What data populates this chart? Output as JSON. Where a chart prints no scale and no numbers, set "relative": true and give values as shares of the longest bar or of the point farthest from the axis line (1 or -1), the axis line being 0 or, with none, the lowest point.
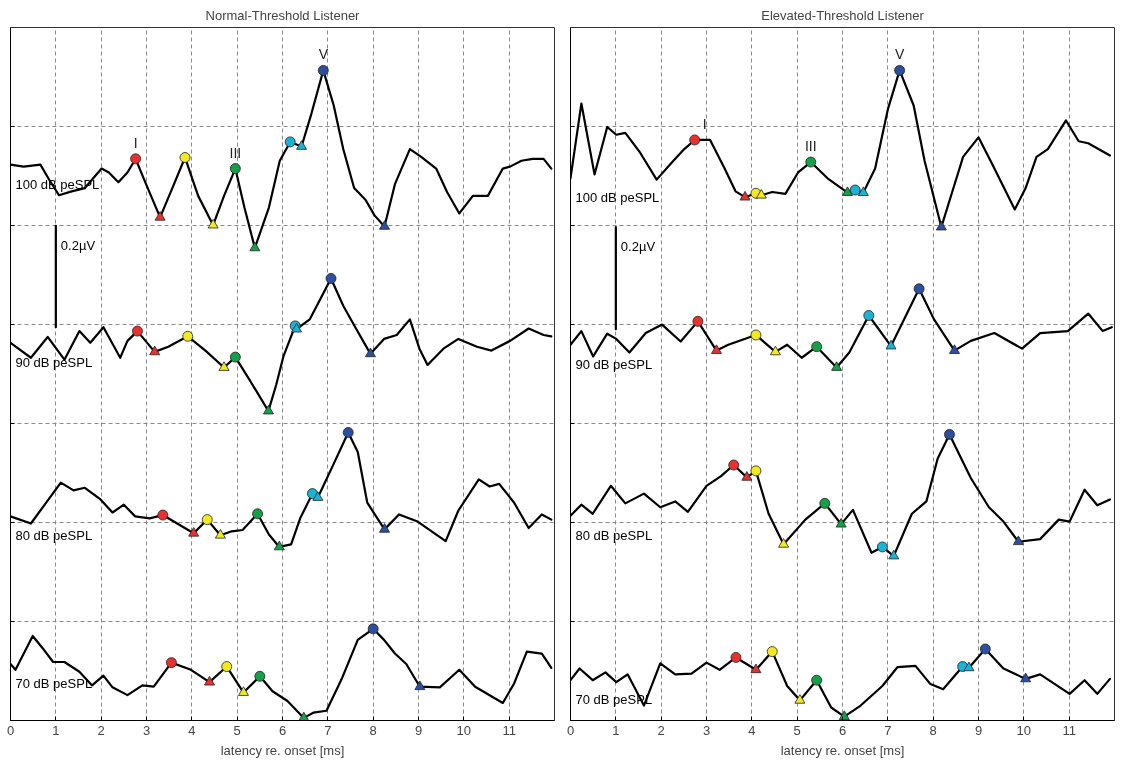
{
  "chart_data": [
    {
      "type": "line",
      "title": "Normal-Threshold Listener",
      "xlabel": "latency re. onset [ms]",
      "relative": true,
      "xlim": [
        0,
        12
      ],
      "xticks": [
        0,
        1,
        2,
        3,
        4,
        5,
        6,
        7,
        8,
        9,
        10,
        11
      ],
      "grid": true,
      "tick_labels": "x",
      "annotations": [
        {
          "text": "I",
          "x": 2.76,
          "y": 0.864
        },
        {
          "text": "III",
          "x": 4.96,
          "y": 0.849
        },
        {
          "text": "V",
          "x": 6.9,
          "y": 1.0
        }
      ],
      "series": [
        {
          "name": "100 dB peSPL",
          "color": "#000000",
          "x": [
            0,
            0.29,
            0.66,
            0.86,
            1.07,
            1.35,
            1.64,
            2.01,
            2.17,
            2.38,
            2.58,
            2.76,
            2.99,
            3.3,
            3.57,
            3.85,
            4.14,
            4.47,
            4.71,
            4.96,
            5.16,
            5.39,
            5.7,
            5.94,
            6.17,
            6.42,
            6.64,
            6.9,
            7.13,
            7.34,
            7.58,
            7.83,
            8.03,
            8.25,
            8.48,
            8.81,
            9.06,
            9.39,
            9.63,
            9.9,
            10.2,
            10.53,
            10.86,
            11.02,
            11.27,
            11.52,
            11.76,
            11.93
          ],
          "values": [
            0.855,
            0.852,
            0.855,
            0.831,
            0.808,
            0.814,
            0.819,
            0.849,
            0.843,
            0.828,
            0.843,
            0.864,
            0.825,
            0.774,
            0.819,
            0.866,
            0.807,
            0.762,
            0.807,
            0.849,
            0.789,
            0.727,
            0.789,
            0.861,
            0.89,
            0.883,
            0.934,
            1.0,
            0.946,
            0.879,
            0.819,
            0.801,
            0.777,
            0.76,
            0.825,
            0.879,
            0.867,
            0.849,
            0.813,
            0.78,
            0.807,
            0.807,
            0.849,
            0.852,
            0.861,
            0.864,
            0.864,
            0.849
          ]
        },
        {
          "name": "90 dB peSPL",
          "color": "#000000",
          "x": [
            0,
            0.45,
            0.82,
            1.19,
            1.52,
            1.76,
            2.05,
            2.42,
            2.58,
            2.8,
            3.18,
            3.48,
            3.91,
            4.3,
            4.71,
            4.96,
            5.29,
            5.69,
            5.86,
            6.02,
            6.28,
            6.31,
            6.6,
            7.07,
            7.34,
            7.58,
            7.94,
            8.24,
            8.52,
            8.81,
            9.02,
            9.2,
            9.55,
            9.88,
            10.29,
            10.61,
            11.02,
            11.43,
            11.76,
            11.93
          ],
          "values": [
            0.581,
            0.558,
            0.59,
            0.555,
            0.599,
            0.581,
            0.605,
            0.558,
            0.584,
            0.599,
            0.567,
            0.575,
            0.591,
            0.569,
            0.543,
            0.559,
            0.522,
            0.476,
            0.516,
            0.56,
            0.607,
            0.602,
            0.617,
            0.68,
            0.638,
            0.608,
            0.564,
            0.587,
            0.593,
            0.617,
            0.572,
            0.547,
            0.572,
            0.587,
            0.575,
            0.569,
            0.584,
            0.603,
            0.593,
            0.591
          ]
        },
        {
          "name": "80 dB peSPL",
          "color": "#000000",
          "x": [
            0,
            0.45,
            1.11,
            1.39,
            1.64,
            1.97,
            2.25,
            2.5,
            2.75,
            3.07,
            3.36,
            4.04,
            4.34,
            4.63,
            4.88,
            5.12,
            5.45,
            5.7,
            5.93,
            6.19,
            6.39,
            6.66,
            6.78,
            7.09,
            7.45,
            7.66,
            7.87,
            8.25,
            8.57,
            8.98,
            9.6,
            9.88,
            10.33,
            10.57,
            10.78,
            11.11,
            11.43,
            11.72,
            11.93
          ],
          "values": [
            0.314,
            0.303,
            0.366,
            0.354,
            0.358,
            0.341,
            0.32,
            0.332,
            0.314,
            0.311,
            0.316,
            0.288,
            0.309,
            0.285,
            0.291,
            0.293,
            0.318,
            0.286,
            0.267,
            0.271,
            0.311,
            0.349,
            0.343,
            0.389,
            0.443,
            0.413,
            0.335,
            0.294,
            0.317,
            0.306,
            0.276,
            0.323,
            0.371,
            0.36,
            0.364,
            0.335,
            0.296,
            0.317,
            0.309
          ]
        },
        {
          "name": "70 dB peSPL",
          "color": "#000000",
          "x": [
            0,
            0.11,
            0.49,
            0.7,
            0.94,
            1.19,
            1.52,
            1.8,
            2.05,
            2.25,
            2.58,
            2.91,
            3.16,
            3.55,
            3.98,
            4.39,
            4.77,
            5.14,
            5.5,
            5.78,
            6.11,
            6.47,
            6.68,
            6.97,
            7.3,
            7.66,
            8.0,
            8.24,
            8.48,
            8.73,
            9.03,
            9.47,
            9.9,
            10.25,
            10.86,
            11.11,
            11.39,
            11.72,
            11.93
          ],
          "values": [
            0.087,
            0.078,
            0.13,
            0.112,
            0.09,
            0.09,
            0.075,
            0.054,
            0.069,
            0.051,
            0.039,
            0.054,
            0.052,
            0.089,
            0.078,
            0.059,
            0.083,
            0.043,
            0.068,
            0.045,
            0.03,
            0.004,
            0.012,
            0.015,
            0.063,
            0.124,
            0.141,
            0.124,
            0.103,
            0.087,
            0.052,
            0.051,
            0.078,
            0.052,
            0.027,
            0.057,
            0.106,
            0.103,
            0.081
          ]
        },
        {
          "name": "0.2µV",
          "color": "#000000",
          "x": [
            1,
            1
          ],
          "values": [
            0.761,
            0.605
          ]
        },
        {
          "type": "scatter",
          "marker": "circle",
          "color": "#e8312f",
          "x": [
            2.76,
            2.8,
            3.36,
            3.55
          ],
          "values": [
            0.864,
            0.599,
            0.316,
            0.089
          ]
        },
        {
          "type": "scatter",
          "marker": "triangle",
          "color": "#e8312f",
          "x": [
            3.3,
            3.18,
            4.04,
            4.39
          ],
          "values": [
            0.774,
            0.567,
            0.288,
            0.059
          ]
        },
        {
          "type": "scatter",
          "marker": "circle",
          "color": "#f2ea1f",
          "x": [
            3.85,
            3.91,
            4.34,
            4.77
          ],
          "values": [
            0.866,
            0.591,
            0.309,
            0.083
          ]
        },
        {
          "type": "scatter",
          "marker": "triangle",
          "color": "#f2ea1f",
          "x": [
            4.47,
            4.71,
            4.63,
            5.14
          ],
          "values": [
            0.762,
            0.543,
            0.285,
            0.043
          ]
        },
        {
          "type": "scatter",
          "marker": "circle",
          "color": "#13a049",
          "x": [
            4.96,
            4.96,
            5.45,
            5.5
          ],
          "values": [
            0.849,
            0.559,
            0.318,
            0.068
          ]
        },
        {
          "type": "scatter",
          "marker": "triangle",
          "color": "#13a049",
          "x": [
            5.39,
            5.69,
            5.93,
            6.47
          ],
          "values": [
            0.727,
            0.476,
            0.267,
            0.004
          ]
        },
        {
          "type": "scatter",
          "marker": "circle",
          "color": "#1ab2d6",
          "x": [
            6.17,
            6.28,
            6.66
          ],
          "values": [
            0.89,
            0.607,
            0.349
          ]
        },
        {
          "type": "scatter",
          "marker": "triangle",
          "color": "#1ab2d6",
          "x": [
            6.42,
            6.31,
            6.78
          ],
          "values": [
            0.883,
            0.602,
            0.343
          ]
        },
        {
          "type": "scatter",
          "marker": "circle",
          "color": "#2c4fa0",
          "x": [
            6.9,
            7.07,
            7.45,
            8.0
          ],
          "values": [
            1.0,
            0.68,
            0.443,
            0.141
          ]
        },
        {
          "type": "scatter",
          "marker": "triangle",
          "color": "#2c4fa0",
          "x": [
            8.25,
            7.94,
            8.25,
            9.03
          ],
          "values": [
            0.76,
            0.564,
            0.294,
            0.052
          ]
        }
      ]
    },
    {
      "type": "line",
      "title": "Elevated-Threshold Listener",
      "xlabel": "latency re. onset [ms]",
      "relative": true,
      "xlim": [
        0,
        12
      ],
      "xticks": [
        0,
        1,
        2,
        3,
        4,
        5,
        6,
        7,
        8,
        9,
        10,
        11
      ],
      "grid": true,
      "tick_labels": "x",
      "annotations": [
        {
          "text": "I",
          "x": 2.96,
          "y": 0.893
        },
        {
          "text": "III",
          "x": 5.3,
          "y": 0.859
        },
        {
          "text": "V",
          "x": 7.26,
          "y": 1.0
        }
      ],
      "series": [
        {
          "name": "100 dB peSPL",
          "color": "#000000",
          "x": [
            0,
            0.24,
            0.53,
            0.81,
            1.01,
            1.21,
            1.54,
            1.9,
            2.23,
            2.51,
            2.74,
            3.08,
            3.4,
            3.64,
            3.85,
            4.09,
            4.21,
            4.45,
            4.74,
            5.02,
            5.3,
            5.67,
            5.91,
            6.11,
            6.28,
            6.46,
            6.72,
            7.0,
            7.26,
            7.57,
            7.81,
            8.18,
            8.42,
            8.66,
            9.0,
            9.31,
            9.8,
            10.04,
            10.28,
            10.53,
            10.93,
            11.21,
            11.42,
            11.9
          ],
          "values": [
            0.834,
            0.949,
            0.84,
            0.913,
            0.901,
            0.904,
            0.873,
            0.832,
            0.858,
            0.879,
            0.893,
            0.893,
            0.849,
            0.814,
            0.805,
            0.811,
            0.808,
            0.813,
            0.81,
            0.843,
            0.859,
            0.834,
            0.822,
            0.812,
            0.816,
            0.812,
            0.849,
            0.94,
            1.0,
            0.946,
            0.861,
            0.759,
            0.813,
            0.867,
            0.897,
            0.855,
            0.786,
            0.819,
            0.867,
            0.879,
            0.923,
            0.891,
            0.888,
            0.869
          ]
        },
        {
          "name": "90 dB peSPL",
          "color": "#000000",
          "x": [
            0,
            0.24,
            0.5,
            0.81,
            1.01,
            1.3,
            1.66,
            2.02,
            2.43,
            2.81,
            3.22,
            3.48,
            4.09,
            4.52,
            4.78,
            5.1,
            5.43,
            5.87,
            6.15,
            6.58,
            7.07,
            7.69,
            8.02,
            8.47,
            8.83,
            9.35,
            9.96,
            10.36,
            10.97,
            11.42,
            11.74,
            11.94
          ],
          "values": [
            0.578,
            0.599,
            0.56,
            0.595,
            0.587,
            0.566,
            0.596,
            0.609,
            0.583,
            0.614,
            0.569,
            0.578,
            0.593,
            0.567,
            0.578,
            0.558,
            0.575,
            0.543,
            0.566,
            0.623,
            0.576,
            0.664,
            0.617,
            0.569,
            0.584,
            0.596,
            0.572,
            0.596,
            0.599,
            0.626,
            0.599,
            0.605
          ]
        },
        {
          "name": "80 dB peSPL",
          "color": "#000000",
          "x": [
            0,
            0.24,
            0.49,
            0.89,
            1.21,
            1.62,
            1.98,
            2.31,
            2.59,
            3.0,
            3.32,
            3.6,
            3.89,
            4.09,
            4.37,
            4.7,
            5.18,
            5.61,
            5.97,
            6.23,
            6.64,
            6.88,
            7.13,
            7.53,
            7.85,
            8.1,
            8.36,
            8.83,
            9.23,
            9.55,
            9.88,
            10.36,
            10.77,
            11.01,
            11.34,
            11.62,
            11.9
          ],
          "values": [
            0.315,
            0.332,
            0.318,
            0.361,
            0.334,
            0.349,
            0.328,
            0.337,
            0.321,
            0.361,
            0.376,
            0.393,
            0.374,
            0.384,
            0.318,
            0.271,
            0.309,
            0.334,
            0.302,
            0.324,
            0.258,
            0.267,
            0.253,
            0.318,
            0.337,
            0.403,
            0.44,
            0.373,
            0.328,
            0.306,
            0.275,
            0.279,
            0.309,
            0.306,
            0.355,
            0.331,
            0.34
          ]
        },
        {
          "name": "70 dB peSPL",
          "color": "#000000",
          "x": [
            0,
            0.2,
            0.49,
            0.77,
            1.01,
            1.26,
            1.62,
            1.98,
            2.31,
            2.67,
            3.0,
            3.29,
            3.65,
            4.09,
            4.45,
            4.78,
            5.06,
            5.43,
            5.75,
            6.04,
            6.4,
            6.88,
            7.21,
            7.61,
            7.94,
            8.22,
            8.65,
            8.79,
            9.15,
            9.55,
            10.04,
            10.36,
            11.01,
            11.34,
            11.62,
            11.9
          ],
          "values": [
            0.062,
            0.08,
            0.062,
            0.074,
            0.059,
            0.071,
            0.023,
            0.088,
            0.071,
            0.072,
            0.089,
            0.078,
            0.097,
            0.078,
            0.106,
            0.053,
            0.031,
            0.062,
            0.02,
            0.006,
            0.023,
            0.053,
            0.082,
            0.084,
            0.056,
            0.048,
            0.083,
            0.081,
            0.11,
            0.08,
            0.064,
            0.071,
            0.041,
            0.062,
            0.041,
            0.064
          ]
        },
        {
          "name": "0.2µV",
          "color": "#000000",
          "x": [
            1,
            1
          ],
          "values": [
            0.759,
            0.602
          ]
        },
        {
          "type": "scatter",
          "marker": "circle",
          "color": "#e8312f",
          "x": [
            2.74,
            2.81,
            3.6,
            3.65
          ],
          "values": [
            0.893,
            0.614,
            0.393,
            0.097
          ]
        },
        {
          "type": "scatter",
          "marker": "triangle",
          "color": "#e8312f",
          "x": [
            3.85,
            3.22,
            3.89,
            4.09
          ],
          "values": [
            0.805,
            0.569,
            0.374,
            0.078
          ]
        },
        {
          "type": "scatter",
          "marker": "circle",
          "color": "#f2ea1f",
          "x": [
            4.09,
            4.09,
            4.09,
            4.45
          ],
          "values": [
            0.811,
            0.593,
            0.384,
            0.106
          ]
        },
        {
          "type": "scatter",
          "marker": "triangle",
          "color": "#f2ea1f",
          "x": [
            4.21,
            4.52,
            4.7,
            5.06
          ],
          "values": [
            0.808,
            0.567,
            0.271,
            0.031
          ]
        },
        {
          "type": "scatter",
          "marker": "circle",
          "color": "#13a049",
          "x": [
            5.3,
            5.43,
            5.61,
            5.43
          ],
          "values": [
            0.859,
            0.575,
            0.334,
            0.062
          ]
        },
        {
          "type": "scatter",
          "marker": "triangle",
          "color": "#13a049",
          "x": [
            6.11,
            5.87,
            5.97,
            6.04
          ],
          "values": [
            0.812,
            0.543,
            0.302,
            0.006
          ]
        },
        {
          "type": "scatter",
          "marker": "circle",
          "color": "#1ab2d6",
          "x": [
            6.28,
            6.58,
            6.88,
            8.65
          ],
          "values": [
            0.816,
            0.623,
            0.267,
            0.083
          ]
        },
        {
          "type": "scatter",
          "marker": "triangle",
          "color": "#1ab2d6",
          "x": [
            6.46,
            7.07,
            7.13,
            8.79
          ],
          "values": [
            0.812,
            0.576,
            0.253,
            0.081
          ]
        },
        {
          "type": "scatter",
          "marker": "circle",
          "color": "#2c4fa0",
          "x": [
            7.26,
            7.69,
            8.36,
            9.15
          ],
          "values": [
            1.0,
            0.664,
            0.44,
            0.11
          ]
        },
        {
          "type": "scatter",
          "marker": "triangle",
          "color": "#2c4fa0",
          "x": [
            8.18,
            8.47,
            9.88,
            10.04
          ],
          "values": [
            0.759,
            0.569,
            0.275,
            0.064
          ]
        }
      ]
    }
  ]
}
